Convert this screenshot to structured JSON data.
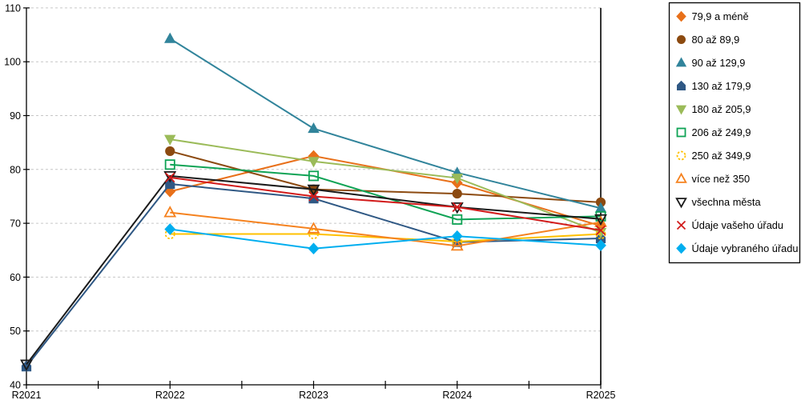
{
  "chart_data": {
    "type": "line",
    "title": "",
    "categories": [
      "R2021",
      "R2022",
      "R2023",
      "R2024",
      "R2025"
    ],
    "xlabel": "",
    "ylabel": "",
    "ylim": [
      40,
      110
    ],
    "ytick_step": 10,
    "y_tick_labels": [
      "40",
      "50",
      "60",
      "70",
      "80",
      "90",
      "100",
      "110"
    ],
    "grid": "horizontal-dashed",
    "grid_color": "#C6C6C6",
    "axis_color": "#000000",
    "legend_position": "right",
    "legend_border_color": "#000000",
    "series": [
      {
        "name": "79,9 a méně",
        "color": "#E8701A",
        "marker": "diamond",
        "fill": "filled",
        "values": [
          null,
          75.9,
          82.5,
          77.5,
          69.5
        ]
      },
      {
        "name": "80 až 89,9",
        "color": "#8C4A10",
        "marker": "circle",
        "fill": "filled",
        "values": [
          null,
          83.4,
          76.3,
          75.5,
          73.9
        ]
      },
      {
        "name": "90 až 129,9",
        "color": "#31849B",
        "marker": "triangle-up",
        "fill": "filled",
        "values": [
          null,
          104.3,
          87.6,
          79.4,
          72.8
        ]
      },
      {
        "name": "130 až 179,9",
        "color": "#2F5884",
        "marker": "pentagon",
        "fill": "filled",
        "values": [
          43.4,
          77.3,
          74.6,
          66.5,
          67.2
        ]
      },
      {
        "name": "180 až 205,9",
        "color": "#9BBB59",
        "marker": "triangle-down",
        "fill": "filled",
        "values": [
          null,
          85.6,
          81.5,
          78.4,
          68.3
        ]
      },
      {
        "name": "206 až 249,9",
        "color": "#0FA355",
        "marker": "square",
        "fill": "open",
        "values": [
          null,
          80.9,
          78.8,
          70.7,
          71.3
        ]
      },
      {
        "name": "250 až 349,9",
        "color": "#FFC000",
        "marker": "circle-dashed",
        "fill": "open",
        "values": [
          null,
          68.0,
          68.0,
          66.6,
          68.0
        ]
      },
      {
        "name": "více než 350",
        "color": "#F5821F",
        "marker": "triangle-up",
        "fill": "open",
        "values": [
          null,
          72.0,
          69.0,
          65.8,
          70.2
        ]
      },
      {
        "name": "všechna města",
        "color": "#1A1A1A",
        "marker": "triangle-down",
        "fill": "open",
        "values": [
          43.8,
          78.8,
          76.3,
          73.0,
          70.8
        ]
      },
      {
        "name": "Údaje vašeho úřadu",
        "color": "#D21B1B",
        "marker": "x",
        "fill": "open",
        "values": [
          null,
          78.5,
          75.0,
          73.0,
          68.7
        ]
      },
      {
        "name": "Údaje vybraného úřadu",
        "color": "#00AEEF",
        "marker": "diamond",
        "fill": "filled",
        "values": [
          null,
          68.9,
          65.3,
          67.6,
          65.9
        ]
      }
    ]
  }
}
